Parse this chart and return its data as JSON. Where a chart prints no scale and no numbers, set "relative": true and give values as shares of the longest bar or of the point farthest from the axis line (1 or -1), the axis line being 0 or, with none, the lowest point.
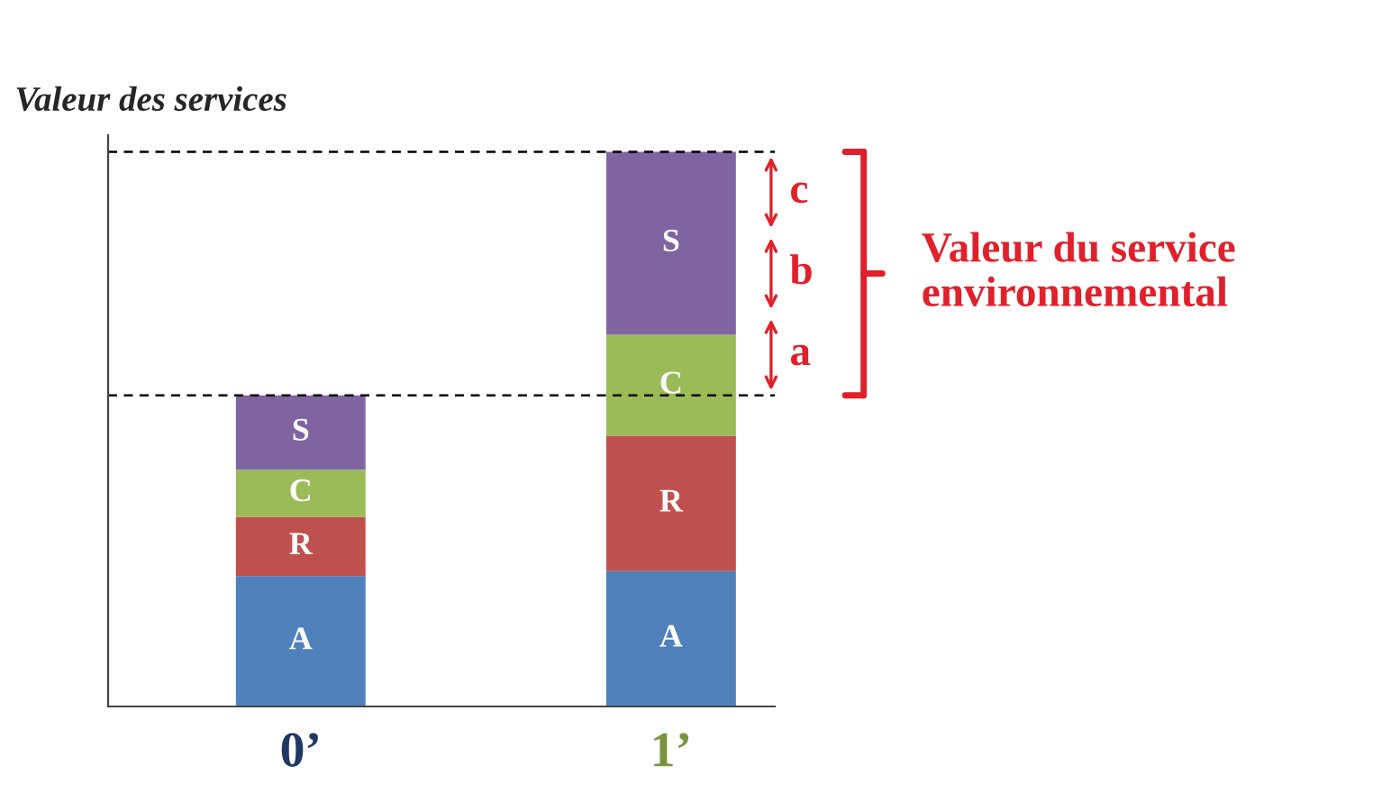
{
  "chart_data": {
    "type": "bar",
    "stacked": true,
    "relative": true,
    "ylabel": "Valeur des services",
    "categories": [
      "0’",
      "1’"
    ],
    "series": [
      {
        "name": "A",
        "color": "#4f81bd",
        "values": [
          0.235,
          0.244
        ]
      },
      {
        "name": "R",
        "color": "#c0504d",
        "values": [
          0.107,
          0.244
        ]
      },
      {
        "name": "C",
        "color": "#9bbb59",
        "values": [
          0.085,
          0.182
        ]
      },
      {
        "name": "S",
        "color": "#8064a2",
        "values": [
          0.134,
          0.33
        ]
      }
    ],
    "ref_lines": [
      {
        "axis": "y",
        "value": 0.561,
        "line_style": "dashed",
        "color": "#000000"
      },
      {
        "axis": "y",
        "value": 1.0,
        "line_style": "dashed",
        "color": "#000000"
      }
    ],
    "annotations": [
      "a",
      "b",
      "c",
      "Valeur du service\nenvironnemental"
    ],
    "grid": false,
    "legend": false
  }
}
